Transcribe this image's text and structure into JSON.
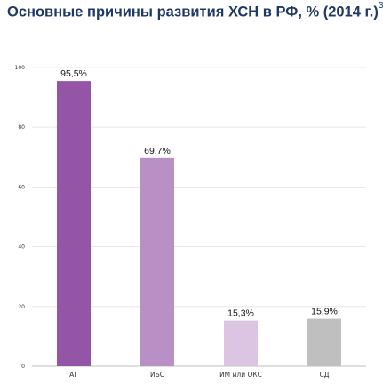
{
  "title": "Основные причины развития ХСН в РФ, % (2014 г.)",
  "title_ref": "3",
  "chart_data": {
    "type": "bar",
    "categories": [
      "АГ",
      "ИБС",
      "ИМ или ОКС",
      "СД"
    ],
    "values": [
      95.5,
      69.7,
      15.3,
      15.9
    ],
    "data_labels": [
      "95,5%",
      "69,7%",
      "15,3%",
      "15,9%"
    ],
    "colors": [
      "#9455a6",
      "#b990c6",
      "#dcc5e3",
      "#bfbfbf"
    ],
    "ylim": [
      0,
      100
    ],
    "yticks": [
      0,
      20,
      40,
      60,
      80,
      100
    ],
    "grid": true,
    "legend": "none"
  }
}
